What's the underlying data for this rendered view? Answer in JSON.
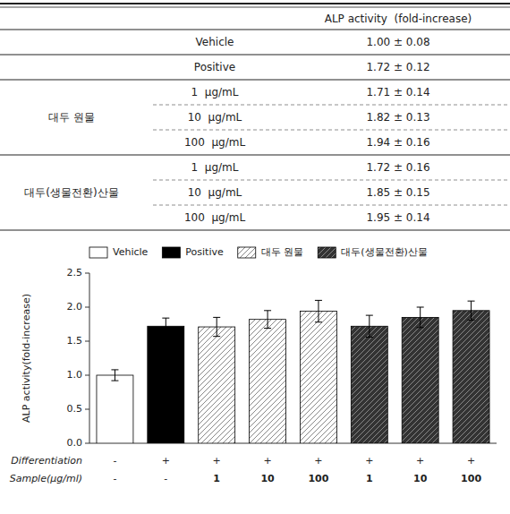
{
  "chart_data": [
    {
      "type": "table",
      "header": "ALP activity  (fold-increase)",
      "groups": [
        {
          "name": null,
          "rows": [
            [
              "Vehicle",
              "1.00 ± 0.08"
            ]
          ]
        },
        {
          "name": null,
          "rows": [
            [
              "Positive",
              "1.72 ± 0.12"
            ]
          ]
        },
        {
          "name": "대두 원물",
          "rows": [
            [
              "1  μg/mL",
              "1.71 ± 0.14"
            ],
            [
              "10  μg/mL",
              "1.82 ± 0.13"
            ],
            [
              "100  μg/mL",
              "1.94 ± 0.16"
            ]
          ]
        },
        {
          "name": "대두(생물전환)산물",
          "rows": [
            [
              "1  μg/mL",
              "1.72 ± 0.16"
            ],
            [
              "10  μg/mL",
              "1.85 ± 0.15"
            ],
            [
              "100  μg/mL",
              "1.95 ± 0.14"
            ]
          ]
        }
      ]
    },
    {
      "type": "bar",
      "ylabel": "ALP activity(fold-increase)",
      "xlabel": "Sample(μg/ml)",
      "categories": [
        "-",
        "-",
        "1",
        "10",
        "100",
        "1",
        "10",
        "100"
      ],
      "differentiation": {
        "label": "Differentiation",
        "values": [
          "-",
          "+",
          "+",
          "+",
          "+",
          "+",
          "+",
          "+"
        ]
      },
      "series": [
        {
          "name": "Vehicle",
          "color": "white",
          "values": [
            1.0,
            null,
            null,
            null,
            null,
            null,
            null,
            null
          ],
          "errors": [
            0.08,
            null,
            null,
            null,
            null,
            null,
            null,
            null
          ]
        },
        {
          "name": "Positive",
          "color": "black",
          "values": [
            null,
            1.72,
            null,
            null,
            null,
            null,
            null,
            null
          ],
          "errors": [
            null,
            0.12,
            null,
            null,
            null,
            null,
            null,
            null
          ]
        },
        {
          "name": "대두 원물",
          "color": "white",
          "values": [
            null,
            null,
            1.71,
            1.82,
            1.94,
            null,
            null,
            null
          ],
          "errors": [
            null,
            null,
            0.14,
            0.13,
            0.16,
            null,
            null,
            null
          ]
        },
        {
          "name": "대두(생물전환)산물",
          "color": "#333333",
          "values": [
            null,
            null,
            null,
            null,
            null,
            1.72,
            1.85,
            1.95
          ],
          "errors": [
            null,
            null,
            null,
            null,
            null,
            0.16,
            0.15,
            0.14
          ]
        }
      ],
      "ylim": [
        0,
        2.5
      ],
      "yticks": [
        {
          "value": 0,
          "label": "0.0"
        },
        0.5,
        {
          "value": 1,
          "label": "1.0"
        },
        1.5,
        {
          "value": 2,
          "label": "2.0"
        },
        2.5
      ],
      "grid": false,
      "legend": "upper left"
    }
  ]
}
